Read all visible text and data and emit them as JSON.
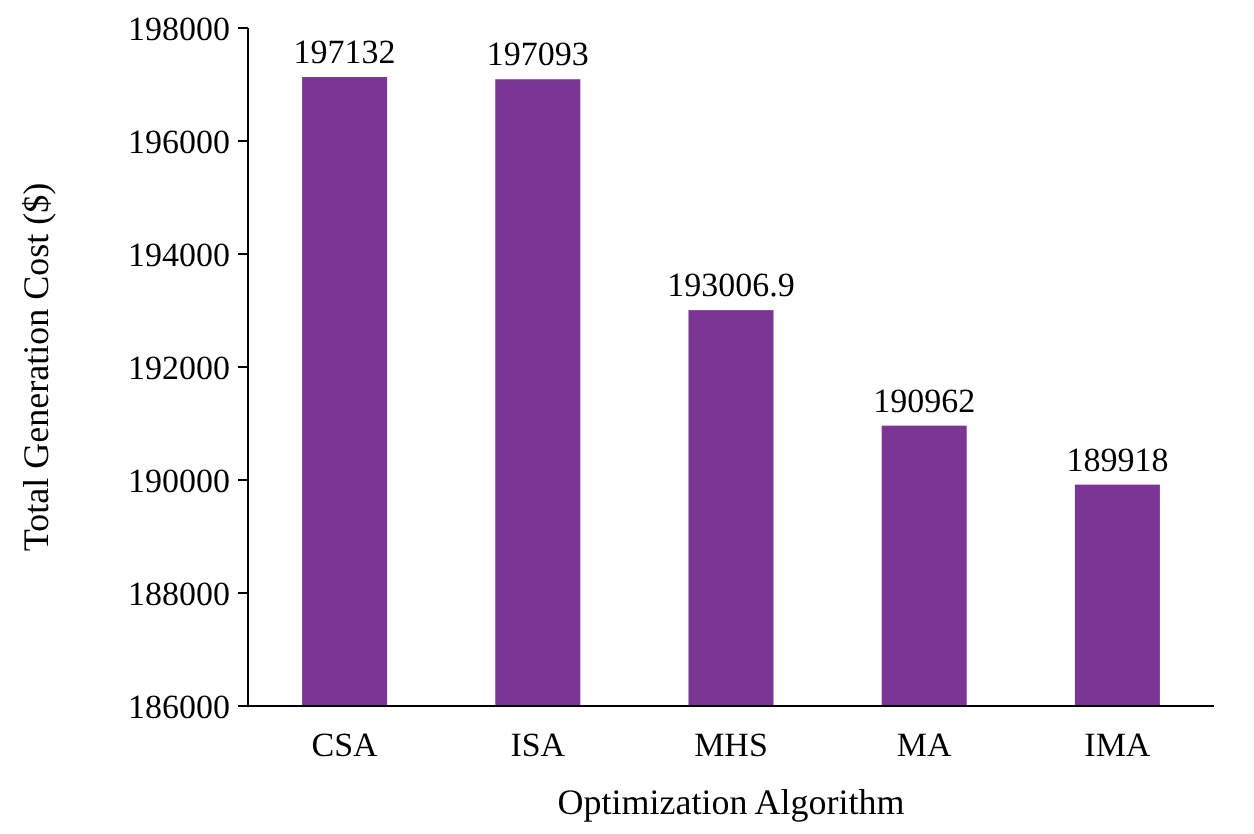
{
  "chart_data": {
    "type": "bar",
    "xlabel": "Optimization Algorithm",
    "ylabel": "Total Generation Cost ($)",
    "categories": [
      "CSA",
      "ISA",
      "MHS",
      "MA",
      "IMA"
    ],
    "values": [
      197132,
      197093,
      193006.9,
      190962,
      189918
    ],
    "color": "#7b3595",
    "ylim": [
      186000,
      198000
    ],
    "yticks": [
      186000,
      188000,
      190000,
      192000,
      194000,
      196000,
      198000
    ],
    "data_labels": true
  }
}
